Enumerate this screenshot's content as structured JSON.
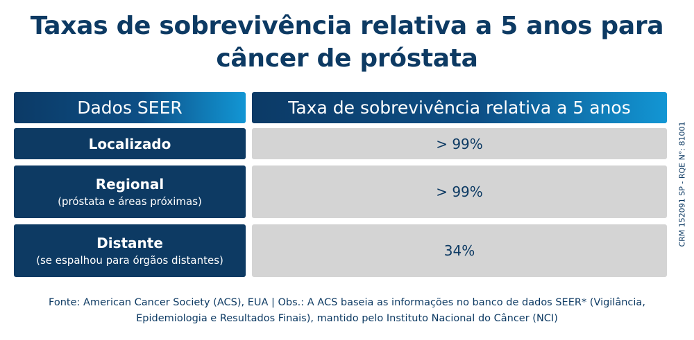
{
  "title": {
    "line1": "Taxas de sobrevivência relativa a 5 anos para",
    "line2": "câncer de próstata"
  },
  "table": {
    "headers": {
      "left": "Dados SEER",
      "right": "Taxa de sobrevivência relativa a 5 anos"
    },
    "rows": [
      {
        "stage": "Localizado",
        "detail": "",
        "rate": "> 99%"
      },
      {
        "stage": "Regional",
        "detail": "(próstata e áreas próximas)",
        "rate": "> 99%"
      },
      {
        "stage": "Distante",
        "detail": "(se espalhou para órgãos distantes)",
        "rate": "34%"
      }
    ]
  },
  "footer": {
    "line1": "Fonte: American Cancer Society (ACS), EUA  |  Obs.: A ACS baseia as informações no banco de dados SEER* (Vigilância,",
    "line2": "Epidemiologia e Resultados Finais), mantido pelo Instituto Nacional do Câncer (NCI)"
  },
  "side_note": "CRM 152091 SP - RQE N°: 81001",
  "colors": {
    "navy": "#0d3a63",
    "gradient_end": "#1296d4",
    "cell_gray": "#d4d4d4"
  }
}
